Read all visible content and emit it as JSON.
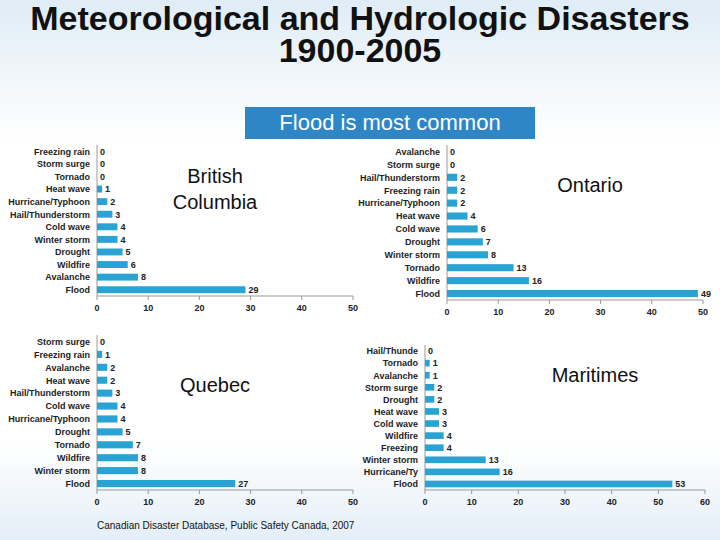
{
  "header": {
    "title": "Meteorological and Hydrologic Disasters 1900-2005",
    "callout": "Flood is most common"
  },
  "source": "Canadian Disaster Database, Public Safety Canada, 2007",
  "chart_data": [
    {
      "type": "bar",
      "orientation": "horizontal",
      "title": "British Columbia",
      "categories": [
        "Freezing rain",
        "Storm surge",
        "Tornado",
        "Heat wave",
        "Hurricane/Typhoon",
        "Hail/Thunderstorm",
        "Cold wave",
        "Winter storm",
        "Drought",
        "Wildfire",
        "Avalanche",
        "Flood"
      ],
      "values": [
        0,
        0,
        0,
        1,
        2,
        3,
        4,
        4,
        5,
        6,
        8,
        29
      ],
      "color": "#29a3d3",
      "xlim": [
        0,
        50
      ],
      "xticks": [
        0,
        10,
        20,
        30,
        40,
        50
      ],
      "data_labels": true
    },
    {
      "type": "bar",
      "orientation": "horizontal",
      "title": "Ontario",
      "categories": [
        "Avalanche",
        "Storm surge",
        "Hail/Thunderstorm",
        "Freezing rain",
        "Hurricane/Typhoon",
        "Heat wave",
        "Cold wave",
        "Drought",
        "Winter storm",
        "Tornado",
        "Wildfire",
        "Flood"
      ],
      "values": [
        0,
        0,
        2,
        2,
        2,
        4,
        6,
        7,
        8,
        13,
        16,
        49
      ],
      "color": "#29a3d3",
      "xlim": [
        0,
        50
      ],
      "xticks": [
        0,
        10,
        20,
        30,
        40,
        50
      ],
      "data_labels": true
    },
    {
      "type": "bar",
      "orientation": "horizontal",
      "title": "Quebec",
      "categories": [
        "Storm surge",
        "Freezing rain",
        "Avalanche",
        "Heat wave",
        "Hail/Thunderstorm",
        "Cold wave",
        "Hurricane/Typhoon",
        "Drought",
        "Tornado",
        "Wildfire",
        "Winter storm",
        "Flood"
      ],
      "values": [
        0,
        1,
        2,
        2,
        3,
        4,
        4,
        5,
        7,
        8,
        8,
        27
      ],
      "color": "#29a3d3",
      "xlim": [
        0,
        50
      ],
      "xticks": [
        0,
        10,
        20,
        30,
        40,
        50
      ],
      "data_labels": true
    },
    {
      "type": "bar",
      "orientation": "horizontal",
      "title": "Maritimes",
      "categories": [
        "Hail/Thunde",
        "Tornado",
        "Avalanche",
        "Storm surge",
        "Drought",
        "Heat wave",
        "Cold wave",
        "Wildfire",
        "Freezing",
        "Winter storm",
        "Hurricane/Ty",
        "Flood"
      ],
      "values": [
        0,
        1,
        1,
        2,
        2,
        3,
        3,
        4,
        4,
        13,
        16,
        53
      ],
      "color": "#29a3d3",
      "xlim": [
        0,
        60
      ],
      "xticks": [
        0,
        10,
        20,
        30,
        40,
        50,
        60
      ],
      "data_labels": true
    }
  ]
}
